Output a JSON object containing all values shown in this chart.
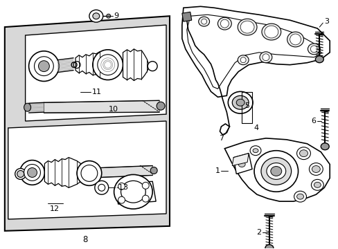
{
  "bg_color": "#ffffff",
  "gray_panel": "#d8d8d8",
  "label_color": "#000000",
  "line_color": "#000000",
  "part_numbers": [
    "1",
    "2",
    "3",
    "4",
    "5",
    "6",
    "7",
    "8",
    "9",
    "10",
    "11",
    "12",
    "13"
  ],
  "figsize": [
    4.89,
    3.6
  ],
  "dpi": 100
}
